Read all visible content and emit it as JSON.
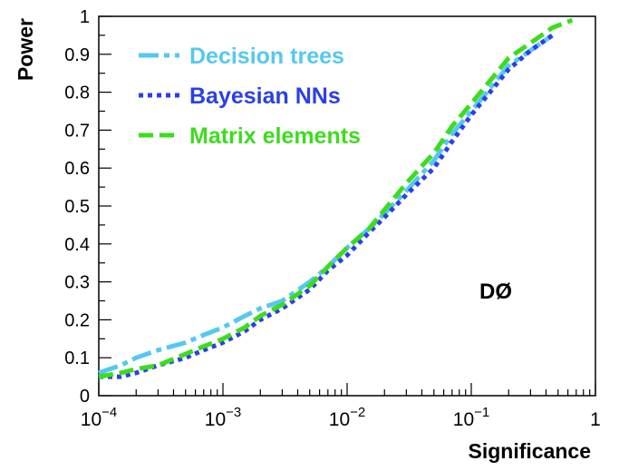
{
  "chart_data": {
    "type": "line",
    "title": "",
    "xlabel": "Significance",
    "ylabel": "Power",
    "xscale": "log",
    "xlim": [
      0.0001,
      1
    ],
    "ylim": [
      0,
      1
    ],
    "x_ticks": [
      {
        "value": 0.0001,
        "base": "10",
        "exp": "−4"
      },
      {
        "value": 0.001,
        "base": "10",
        "exp": "−3"
      },
      {
        "value": 0.01,
        "base": "10",
        "exp": "−2"
      },
      {
        "value": 0.1,
        "base": "10",
        "exp": "−1"
      },
      {
        "value": 1,
        "base": "1",
        "exp": ""
      }
    ],
    "y_ticks": [
      "0",
      "0.1",
      "0.2",
      "0.3",
      "0.4",
      "0.5",
      "0.6",
      "0.7",
      "0.8",
      "0.9",
      "1"
    ],
    "legend_position": "top-left",
    "annotation": "DØ",
    "series": [
      {
        "name": "Decision trees",
        "color": "#55c8f0",
        "style": "dash-dot",
        "x": [
          0.0001,
          0.00015,
          0.0002,
          0.0003,
          0.0005,
          0.0007,
          0.001,
          0.0015,
          0.002,
          0.003,
          0.005,
          0.007,
          0.01,
          0.015,
          0.02,
          0.03,
          0.05,
          0.07,
          0.1,
          0.15,
          0.2,
          0.3,
          0.45
        ],
        "y": [
          0.06,
          0.08,
          0.1,
          0.12,
          0.14,
          0.16,
          0.18,
          0.21,
          0.23,
          0.25,
          0.3,
          0.34,
          0.39,
          0.44,
          0.48,
          0.54,
          0.62,
          0.69,
          0.75,
          0.82,
          0.87,
          0.91,
          0.95
        ]
      },
      {
        "name": "Bayesian NNs",
        "color": "#2a3fe8",
        "style": "dotted",
        "x": [
          0.0001,
          0.00015,
          0.0002,
          0.0003,
          0.0005,
          0.0007,
          0.001,
          0.0015,
          0.002,
          0.003,
          0.005,
          0.007,
          0.01,
          0.015,
          0.02,
          0.03,
          0.05,
          0.07,
          0.1,
          0.15,
          0.2,
          0.3,
          0.45
        ],
        "y": [
          0.05,
          0.05,
          0.06,
          0.08,
          0.1,
          0.12,
          0.14,
          0.17,
          0.2,
          0.23,
          0.28,
          0.33,
          0.37,
          0.43,
          0.47,
          0.53,
          0.6,
          0.67,
          0.74,
          0.81,
          0.86,
          0.91,
          0.95
        ]
      },
      {
        "name": "Matrix elements",
        "color": "#3cdc1e",
        "style": "dashed",
        "x": [
          0.0001,
          0.00015,
          0.0002,
          0.0003,
          0.0005,
          0.0007,
          0.001,
          0.0015,
          0.002,
          0.003,
          0.005,
          0.007,
          0.01,
          0.015,
          0.02,
          0.03,
          0.05,
          0.07,
          0.1,
          0.15,
          0.2,
          0.3,
          0.45,
          0.65
        ],
        "y": [
          0.05,
          0.06,
          0.07,
          0.08,
          0.11,
          0.13,
          0.15,
          0.18,
          0.21,
          0.24,
          0.29,
          0.34,
          0.39,
          0.44,
          0.49,
          0.56,
          0.64,
          0.71,
          0.77,
          0.84,
          0.89,
          0.93,
          0.97,
          0.99
        ]
      }
    ]
  }
}
